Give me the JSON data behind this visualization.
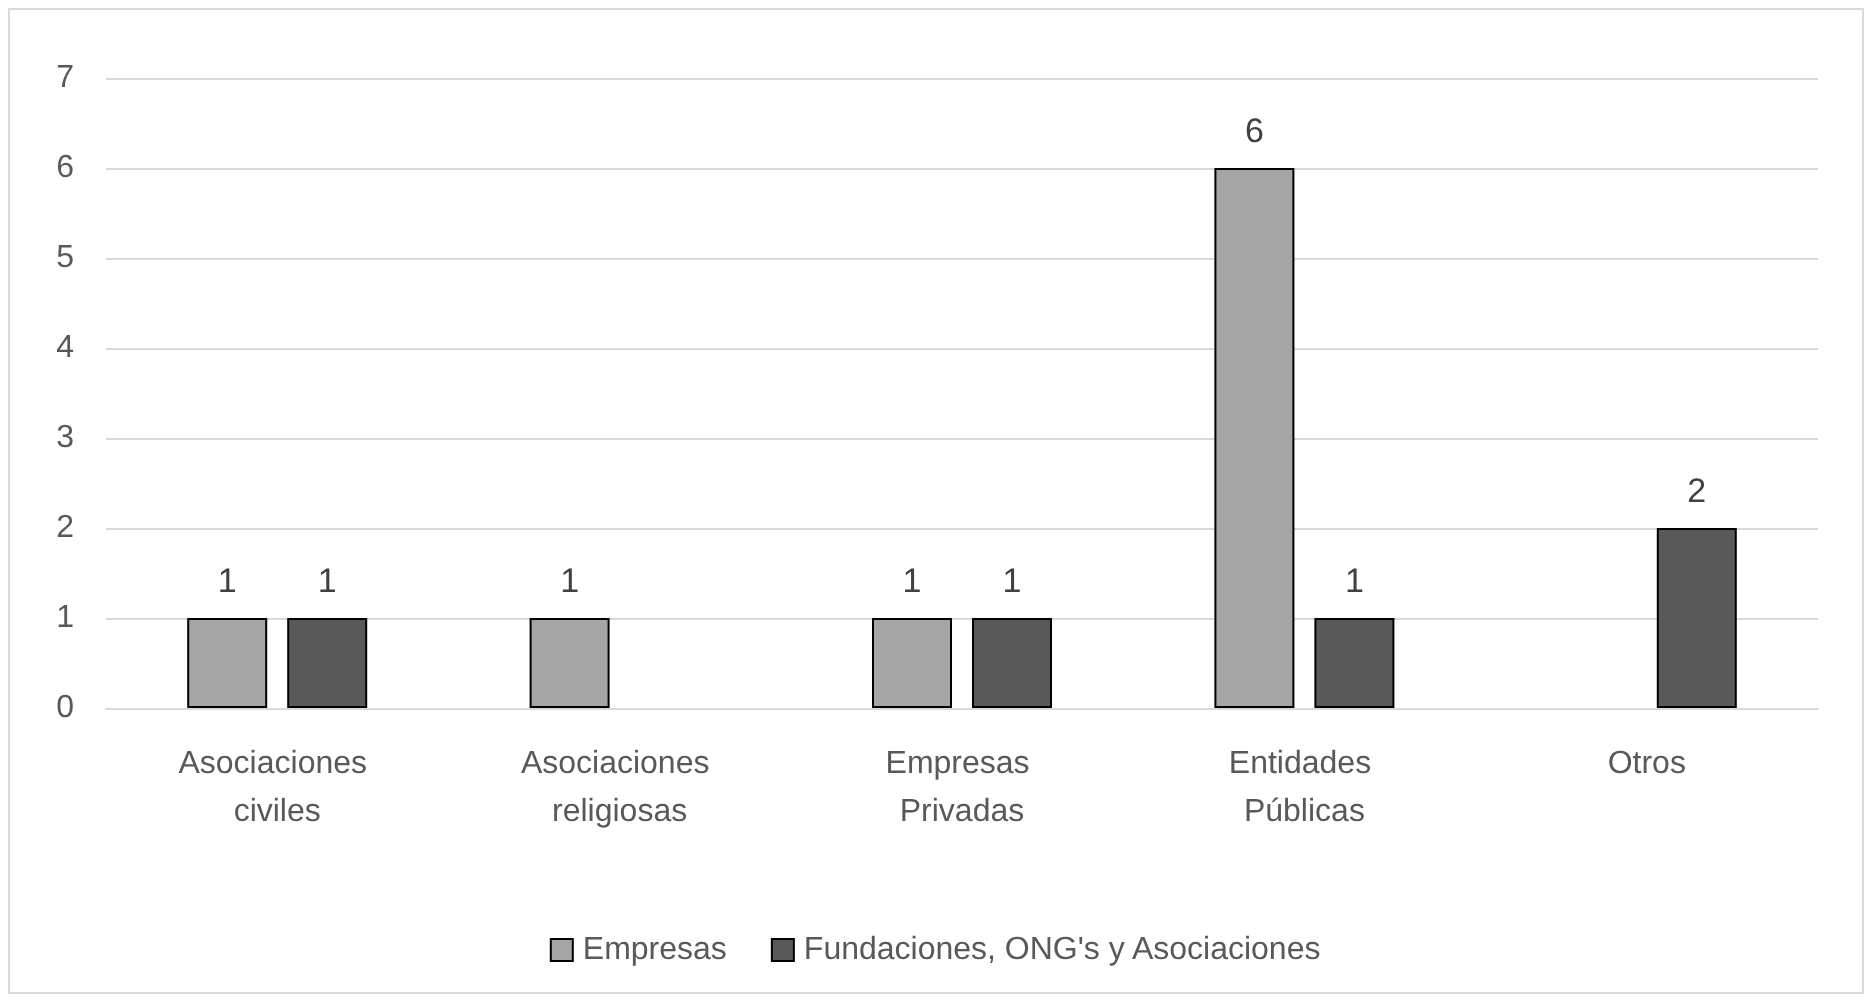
{
  "chart_data": {
    "type": "bar",
    "categories": [
      "Asociaciones civiles",
      "Asociaciones religiosas",
      "Empresas Privadas",
      "Entidades Públicas",
      "Otros"
    ],
    "series": [
      {
        "name": "Empresas",
        "color": "#a5a5a5",
        "values": [
          1,
          1,
          1,
          6,
          null
        ]
      },
      {
        "name": "Fundaciones, ONG's y Asociaciones",
        "color": "#595959",
        "values": [
          1,
          null,
          1,
          1,
          2
        ]
      }
    ],
    "ylim": [
      0,
      7
    ],
    "yticks": [
      0,
      1,
      2,
      3,
      4,
      5,
      6,
      7
    ],
    "grid": "y",
    "legend": "bottom",
    "data_labels": true
  }
}
